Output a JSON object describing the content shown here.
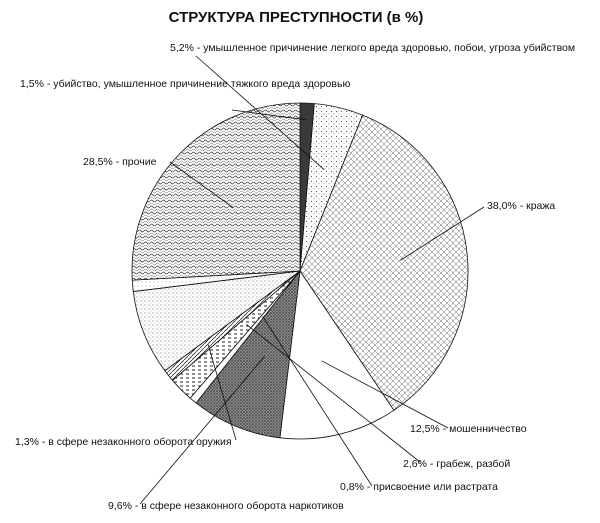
{
  "chart_data": {
    "type": "pie",
    "title": "СТРУКТУРА ПРЕСТУПНОСТИ  (в %)",
    "slices": [
      {
        "value": 1.5,
        "label": "1,5% - убийство, умышленное причинение тяжкого вреда здоровью",
        "pattern": "solid-dark"
      },
      {
        "value": 5.2,
        "label": "5,2% - умышленное причинение легкого вреда здоровью, побои, угроза убийством",
        "pattern": "sparse-dots"
      },
      {
        "value": 38.0,
        "label": "38,0% - кража",
        "pattern": "cross-grid"
      },
      {
        "value": 12.5,
        "label": "12,5% - мошенничество",
        "pattern": "blank"
      },
      {
        "value": 9.6,
        "label": "9,6% - в сфере незаконного оборота наркотиков",
        "pattern": "dense-dark"
      },
      {
        "value": 0.8,
        "label": "0,8% - присвоение или растрата",
        "pattern": "blank"
      },
      {
        "value": 2.6,
        "label": "2,6% - грабеж, разбой",
        "pattern": "dash"
      },
      {
        "value": 1.3,
        "label": "1,3% - в сфере незаконного оборота оружия",
        "pattern": "diagonal"
      },
      {
        "value": 0.0,
        "label": "",
        "pattern": "blank"
      },
      {
        "value": 9.0,
        "label": "",
        "pattern": "fine-dots"
      },
      {
        "value": 1.2,
        "label": "",
        "pattern": "light-dots"
      },
      {
        "value": 28.5,
        "label": "28,5% - прочие",
        "pattern": "weave"
      }
    ],
    "legend": "none"
  }
}
